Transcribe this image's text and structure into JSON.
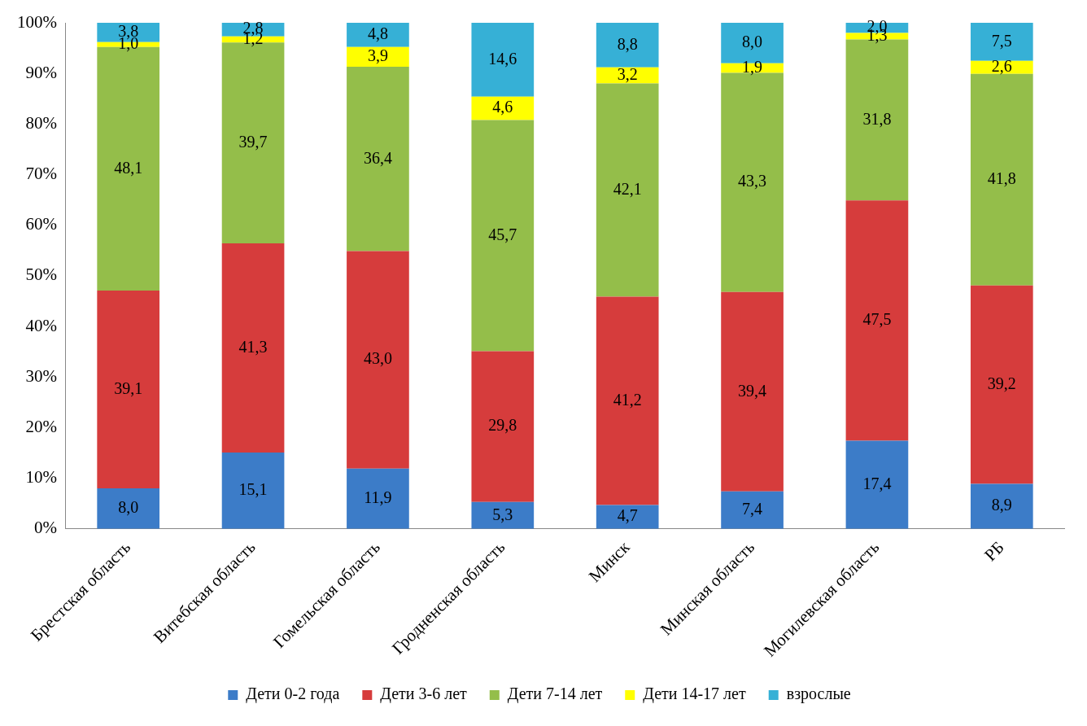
{
  "chart_data": {
    "type": "bar",
    "stacked": true,
    "categories": [
      "Брестская область",
      "Витебская область",
      "Гомельская область",
      "Гродненская область",
      "Минск",
      "Минская область",
      "Могилевская область",
      "РБ"
    ],
    "series": [
      {
        "name": "Дети 0-2 года",
        "color": "#3c7cc8",
        "values": [
          8.0,
          15.1,
          11.9,
          5.3,
          4.7,
          7.4,
          17.4,
          8.9
        ],
        "value_labels": [
          "8,0",
          "15,1",
          "11,9",
          "5,3",
          "4,7",
          "7,4",
          "17,4",
          "8,9"
        ]
      },
      {
        "name": "Дети 3-6 лет",
        "color": "#d63c3c",
        "values": [
          39.1,
          41.3,
          43.0,
          29.8,
          41.2,
          39.4,
          47.5,
          39.2
        ],
        "value_labels": [
          "39,1",
          "41,3",
          "43,0",
          "29,8",
          "41,2",
          "39,4",
          "47,5",
          "39,2"
        ]
      },
      {
        "name": "Дети 7-14 лет",
        "color": "#94be4a",
        "values": [
          48.1,
          39.7,
          36.4,
          45.7,
          42.1,
          43.3,
          31.8,
          41.8
        ],
        "value_labels": [
          "48,1",
          "39,7",
          "36,4",
          "45,7",
          "42,1",
          "43,3",
          "31,8",
          "41,8"
        ]
      },
      {
        "name": "Дети 14-17 лет",
        "color": "#ffff00",
        "values": [
          1.0,
          1.2,
          3.9,
          4.6,
          3.2,
          1.9,
          1.3,
          2.6
        ],
        "value_labels": [
          "1,0",
          "1,2",
          "3,9",
          "4,6",
          "3,2",
          "1,9",
          "1,3",
          "2,6"
        ]
      },
      {
        "name": "взрослые",
        "color": "#36b0d6",
        "values": [
          3.8,
          2.8,
          4.8,
          14.6,
          8.8,
          8.0,
          2.0,
          7.5
        ],
        "value_labels": [
          "3,8",
          "2,8",
          "4,8",
          "14,6",
          "8,8",
          "8,0",
          "2,0",
          "7,5"
        ]
      }
    ],
    "ylim": [
      0,
      100
    ],
    "yticks": [
      {
        "value": 0,
        "label": "0%"
      },
      {
        "value": 10,
        "label": "10%"
      },
      {
        "value": 20,
        "label": "20%"
      },
      {
        "value": 30,
        "label": "30%"
      },
      {
        "value": 40,
        "label": "40%"
      },
      {
        "value": 50,
        "label": "50%"
      },
      {
        "value": 60,
        "label": "60%"
      },
      {
        "value": 70,
        "label": "70%"
      },
      {
        "value": 80,
        "label": "80%"
      },
      {
        "value": 90,
        "label": "90%"
      },
      {
        "value": 100,
        "label": "100%"
      }
    ],
    "grid": false,
    "legend": "bottom"
  }
}
